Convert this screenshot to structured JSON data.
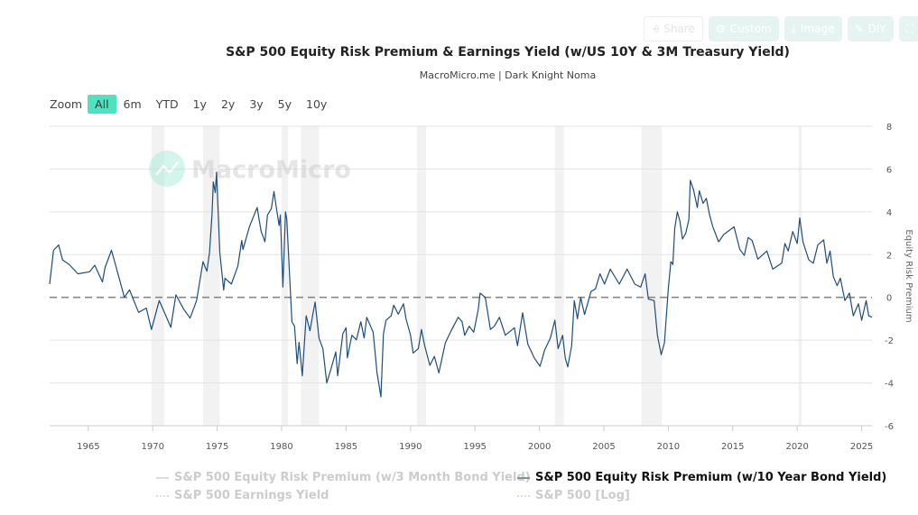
{
  "toolbar": {
    "share": "Share",
    "custom": "Custom",
    "image": "Image",
    "diy": "DIY"
  },
  "header": {
    "title": "S&P 500 Equity Risk Premium & Earnings Yield (w/US 10Y & 3M Treasury Yield)",
    "subtitle": "MacroMicro.me | Dark Knight Noma"
  },
  "zoom": {
    "label": "Zoom",
    "options": [
      "All",
      "6m",
      "YTD",
      "1y",
      "2y",
      "3y",
      "5y",
      "10y"
    ],
    "selected": "All"
  },
  "watermark": "MacroMicro",
  "colors": {
    "line": "#1f4e79",
    "accent": "#4de3c1",
    "recession": "#f2f2f2",
    "zero_line": "#888888"
  },
  "legend": [
    {
      "label": "S&P 500 Equity Risk Premium (w/3 Month Bond Yield)",
      "active": false
    },
    {
      "label": "S&P 500 Equity Risk Premium (w/10 Year Bond Yield)",
      "active": true
    },
    {
      "label": "S&P 500 Earnings Yield",
      "active": false
    },
    {
      "label": "S&P 500 [Log]",
      "active": false
    }
  ],
  "chart_data": {
    "type": "line",
    "title": "S&P 500 Equity Risk Premium & Earnings Yield (w/US 10Y & 3M Treasury Yield)",
    "xlabel": "",
    "ylabel": "Equity Risk Premium",
    "xlim": [
      1962.0,
      2025.8
    ],
    "ylim": [
      -6,
      8
    ],
    "xticks": [
      "1965",
      "1970",
      "1975",
      "1980",
      "1985",
      "1990",
      "1995",
      "2000",
      "2005",
      "2010",
      "2015",
      "2020",
      "2025"
    ],
    "yticks": [
      "8",
      "6",
      "4",
      "2",
      "0",
      "-2",
      "-4",
      "-6"
    ],
    "grid": true,
    "reference_line": 0,
    "recessions": [
      [
        1969.9,
        1970.9
      ],
      [
        1973.9,
        1975.2
      ],
      [
        1980.0,
        1980.5
      ],
      [
        1981.5,
        1982.9
      ],
      [
        1990.5,
        1991.2
      ],
      [
        2001.2,
        2001.9
      ],
      [
        2007.9,
        2009.5
      ],
      [
        2020.1,
        2020.35
      ]
    ],
    "series": [
      {
        "name": "S&P 500 Equity Risk Premium (w/10 Year Bond Yield)",
        "points": [
          [
            1962.0,
            0.62
          ],
          [
            1962.3,
            2.2
          ],
          [
            1962.7,
            2.45
          ],
          [
            1963.0,
            1.75
          ],
          [
            1963.5,
            1.55
          ],
          [
            1964.2,
            1.1
          ],
          [
            1965.1,
            1.2
          ],
          [
            1965.5,
            1.5
          ],
          [
            1966.1,
            0.72
          ],
          [
            1966.3,
            1.4
          ],
          [
            1966.8,
            2.2
          ],
          [
            1967.1,
            1.55
          ],
          [
            1967.8,
            0.0
          ],
          [
            1968.2,
            0.35
          ],
          [
            1968.9,
            -0.7
          ],
          [
            1969.5,
            -0.5
          ],
          [
            1969.9,
            -1.5
          ],
          [
            1970.5,
            -0.15
          ],
          [
            1970.9,
            -0.7
          ],
          [
            1971.4,
            -1.4
          ],
          [
            1971.8,
            0.12
          ],
          [
            1972.4,
            -0.55
          ],
          [
            1972.9,
            -0.97
          ],
          [
            1973.4,
            -0.15
          ],
          [
            1973.9,
            1.67
          ],
          [
            1974.2,
            1.22
          ],
          [
            1974.4,
            2.1
          ],
          [
            1974.6,
            3.9
          ],
          [
            1974.7,
            5.4
          ],
          [
            1974.85,
            4.9
          ],
          [
            1974.95,
            5.85
          ],
          [
            1975.2,
            2.1
          ],
          [
            1975.5,
            0.34
          ],
          [
            1975.6,
            0.9
          ],
          [
            1976.1,
            0.62
          ],
          [
            1976.6,
            1.46
          ],
          [
            1976.9,
            2.66
          ],
          [
            1977.0,
            2.24
          ],
          [
            1977.5,
            3.3
          ],
          [
            1977.9,
            3.9
          ],
          [
            1978.1,
            4.2
          ],
          [
            1978.4,
            3.1
          ],
          [
            1978.7,
            2.6
          ],
          [
            1978.9,
            3.85
          ],
          [
            1979.2,
            4.15
          ],
          [
            1979.4,
            4.95
          ],
          [
            1979.6,
            4.15
          ],
          [
            1979.8,
            3.36
          ],
          [
            1979.9,
            3.85
          ],
          [
            1980.1,
            0.48
          ],
          [
            1980.3,
            4.0
          ],
          [
            1980.4,
            3.65
          ],
          [
            1980.8,
            -1.14
          ],
          [
            1981.0,
            -1.35
          ],
          [
            1981.2,
            -3.1
          ],
          [
            1981.35,
            -2.1
          ],
          [
            1981.6,
            -3.67
          ],
          [
            1981.9,
            -0.86
          ],
          [
            1982.2,
            -1.56
          ],
          [
            1982.4,
            -0.86
          ],
          [
            1982.6,
            -0.22
          ],
          [
            1982.9,
            -1.9
          ],
          [
            1983.2,
            -2.4
          ],
          [
            1983.5,
            -4.0
          ],
          [
            1983.8,
            -3.4
          ],
          [
            1984.2,
            -2.55
          ],
          [
            1984.35,
            -3.67
          ],
          [
            1984.75,
            -1.7
          ],
          [
            1985.0,
            -1.42
          ],
          [
            1985.1,
            -2.83
          ],
          [
            1985.45,
            -1.77
          ],
          [
            1985.8,
            -1.98
          ],
          [
            1986.15,
            -1.14
          ],
          [
            1986.4,
            -1.9
          ],
          [
            1986.6,
            -0.93
          ],
          [
            1987.1,
            -1.63
          ],
          [
            1987.4,
            -3.53
          ],
          [
            1987.7,
            -4.65
          ],
          [
            1987.9,
            -1.7
          ],
          [
            1988.1,
            -1.07
          ],
          [
            1988.5,
            -0.86
          ],
          [
            1988.7,
            -0.36
          ],
          [
            1989.05,
            -0.79
          ],
          [
            1989.45,
            -0.3
          ],
          [
            1989.65,
            -1.0
          ],
          [
            1990.0,
            -1.77
          ],
          [
            1990.2,
            -2.6
          ],
          [
            1990.6,
            -2.4
          ],
          [
            1990.85,
            -1.5
          ],
          [
            1991.1,
            -2.26
          ],
          [
            1991.5,
            -3.18
          ],
          [
            1991.85,
            -2.76
          ],
          [
            1992.2,
            -3.53
          ],
          [
            1992.7,
            -2.12
          ],
          [
            1993.15,
            -1.56
          ],
          [
            1993.7,
            -0.93
          ],
          [
            1994.0,
            -1.14
          ],
          [
            1994.2,
            -1.77
          ],
          [
            1994.55,
            -1.35
          ],
          [
            1994.9,
            -1.63
          ],
          [
            1995.25,
            -0.57
          ],
          [
            1995.4,
            0.2
          ],
          [
            1995.8,
            0.0
          ],
          [
            1996.2,
            -1.5
          ],
          [
            1996.5,
            -1.35
          ],
          [
            1996.9,
            -0.93
          ],
          [
            1997.35,
            -1.77
          ],
          [
            1998.05,
            -1.42
          ],
          [
            1998.3,
            -2.26
          ],
          [
            1998.7,
            -0.72
          ],
          [
            1999.1,
            -2.2
          ],
          [
            1999.6,
            -2.83
          ],
          [
            2000.05,
            -3.22
          ],
          [
            2000.4,
            -2.47
          ],
          [
            2000.85,
            -1.9
          ],
          [
            2001.2,
            -1.07
          ],
          [
            2001.45,
            -2.4
          ],
          [
            2001.8,
            -1.77
          ],
          [
            2002.0,
            -2.83
          ],
          [
            2002.2,
            -3.25
          ],
          [
            2002.5,
            -2.26
          ],
          [
            2002.7,
            -0.15
          ],
          [
            2002.95,
            -1.0
          ],
          [
            2003.2,
            0.0
          ],
          [
            2003.5,
            -0.8
          ],
          [
            2004.0,
            0.27
          ],
          [
            2004.35,
            0.4
          ],
          [
            2004.7,
            1.1
          ],
          [
            2005.05,
            0.62
          ],
          [
            2005.5,
            1.32
          ],
          [
            2006.2,
            0.62
          ],
          [
            2006.8,
            1.32
          ],
          [
            2007.4,
            0.62
          ],
          [
            2007.85,
            0.48
          ],
          [
            2008.2,
            1.1
          ],
          [
            2008.45,
            -0.08
          ],
          [
            2008.9,
            -0.15
          ],
          [
            2009.15,
            -1.77
          ],
          [
            2009.45,
            -2.68
          ],
          [
            2009.7,
            -2.12
          ],
          [
            2010.0,
            0.41
          ],
          [
            2010.2,
            1.67
          ],
          [
            2010.35,
            1.54
          ],
          [
            2010.5,
            3.22
          ],
          [
            2010.7,
            4.0
          ],
          [
            2010.9,
            3.57
          ],
          [
            2011.1,
            2.73
          ],
          [
            2011.35,
            3.0
          ],
          [
            2011.6,
            3.65
          ],
          [
            2011.7,
            5.47
          ],
          [
            2011.95,
            5.05
          ],
          [
            2012.25,
            4.2
          ],
          [
            2012.4,
            4.98
          ],
          [
            2012.7,
            4.4
          ],
          [
            2012.95,
            4.63
          ],
          [
            2013.2,
            3.86
          ],
          [
            2013.45,
            3.3
          ],
          [
            2013.9,
            2.6
          ],
          [
            2014.3,
            2.94
          ],
          [
            2015.1,
            3.3
          ],
          [
            2015.55,
            2.24
          ],
          [
            2015.9,
            1.96
          ],
          [
            2016.2,
            2.8
          ],
          [
            2016.5,
            2.66
          ],
          [
            2016.95,
            1.79
          ],
          [
            2017.65,
            2.17
          ],
          [
            2018.1,
            1.32
          ],
          [
            2018.8,
            1.6
          ],
          [
            2019.05,
            2.52
          ],
          [
            2019.3,
            2.17
          ],
          [
            2019.65,
            3.08
          ],
          [
            2020.0,
            2.52
          ],
          [
            2020.2,
            3.71
          ],
          [
            2020.45,
            2.59
          ],
          [
            2020.9,
            1.75
          ],
          [
            2021.25,
            1.6
          ],
          [
            2021.6,
            2.45
          ],
          [
            2022.05,
            2.69
          ],
          [
            2022.3,
            1.6
          ],
          [
            2022.55,
            2.17
          ],
          [
            2022.8,
            0.97
          ],
          [
            2023.1,
            0.55
          ],
          [
            2023.35,
            0.9
          ],
          [
            2023.7,
            -0.15
          ],
          [
            2024.05,
            0.2
          ],
          [
            2024.35,
            -0.86
          ],
          [
            2024.75,
            -0.3
          ],
          [
            2025.0,
            -1.07
          ],
          [
            2025.35,
            -0.15
          ],
          [
            2025.55,
            -0.86
          ],
          [
            2025.8,
            -0.93
          ]
        ]
      }
    ]
  }
}
